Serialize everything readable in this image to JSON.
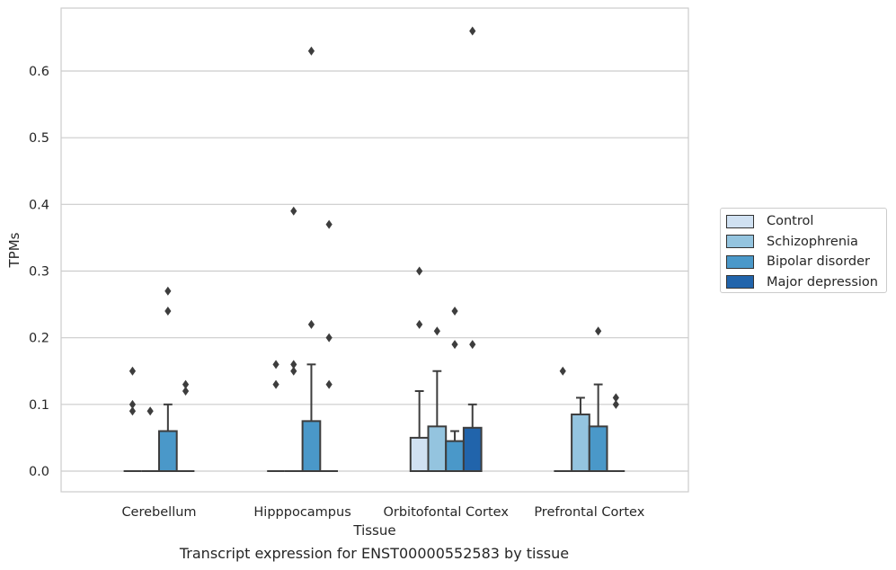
{
  "chart_data": {
    "type": "box",
    "ylabel": "TPMs",
    "xlabel": "Tissue",
    "ylim": [
      -0.032,
      0.69
    ],
    "yticks": [
      0.0,
      0.1,
      0.2,
      0.3,
      0.4,
      0.5,
      0.6
    ],
    "ytick_labels": [
      "0.0",
      "0.1",
      "0.2",
      "0.3",
      "0.4",
      "0.5",
      "0.6"
    ],
    "grid": true,
    "legend_position": "right",
    "categories": [
      "Cerebellum",
      "Hipppocampus",
      "Orbitofontal Cortex",
      "Prefrontal Cortex"
    ],
    "series": [
      {
        "name": "Control",
        "color": "#d0e1f2",
        "boxes": [
          {
            "q1": 0,
            "median": 0,
            "q3": 0,
            "whisker_low": 0,
            "whisker_high": 0,
            "outliers": [
              0.15,
              0.1,
              0.09
            ]
          },
          {
            "q1": 0,
            "median": 0,
            "q3": 0,
            "whisker_low": 0,
            "whisker_high": 0,
            "outliers": [
              0.16,
              0.13
            ]
          },
          {
            "q1": 0,
            "median": 0,
            "q3": 0.05,
            "whisker_low": 0,
            "whisker_high": 0.12,
            "outliers": [
              0.3,
              0.22
            ]
          },
          {
            "q1": 0,
            "median": 0,
            "q3": 0,
            "whisker_low": 0,
            "whisker_high": 0,
            "outliers": [
              0.15
            ]
          }
        ]
      },
      {
        "name": "Schizophrenia",
        "color": "#94c4df",
        "boxes": [
          {
            "q1": 0,
            "median": 0,
            "q3": 0,
            "whisker_low": 0,
            "whisker_high": 0,
            "outliers": [
              0.09
            ]
          },
          {
            "q1": 0,
            "median": 0,
            "q3": 0,
            "whisker_low": 0,
            "whisker_high": 0,
            "outliers": [
              0.39,
              0.16,
              0.15
            ]
          },
          {
            "q1": 0,
            "median": 0,
            "q3": 0.067,
            "whisker_low": 0,
            "whisker_high": 0.15,
            "outliers": [
              0.21
            ]
          },
          {
            "q1": 0,
            "median": 0,
            "q3": 0.085,
            "whisker_low": 0,
            "whisker_high": 0.11,
            "outliers": []
          }
        ]
      },
      {
        "name": "Bipolar disorder",
        "color": "#4a98c9",
        "boxes": [
          {
            "q1": 0,
            "median": 0,
            "q3": 0.06,
            "whisker_low": 0,
            "whisker_high": 0.1,
            "outliers": [
              0.27,
              0.24
            ]
          },
          {
            "q1": 0,
            "median": 0,
            "q3": 0.075,
            "whisker_low": 0,
            "whisker_high": 0.16,
            "outliers": [
              0.63,
              0.22
            ]
          },
          {
            "q1": 0,
            "median": 0,
            "q3": 0.045,
            "whisker_low": 0,
            "whisker_high": 0.06,
            "outliers": [
              0.24,
              0.19
            ]
          },
          {
            "q1": 0,
            "median": 0,
            "q3": 0.067,
            "whisker_low": 0,
            "whisker_high": 0.13,
            "outliers": [
              0.21
            ]
          }
        ]
      },
      {
        "name": "Major depression",
        "color": "#2164ab",
        "boxes": [
          {
            "q1": 0,
            "median": 0,
            "q3": 0,
            "whisker_low": 0,
            "whisker_high": 0,
            "outliers": [
              0.13,
              0.12
            ]
          },
          {
            "q1": 0,
            "median": 0,
            "q3": 0,
            "whisker_low": 0,
            "whisker_high": 0,
            "outliers": [
              0.37,
              0.2,
              0.13
            ]
          },
          {
            "q1": 0,
            "median": 0,
            "q3": 0.065,
            "whisker_low": 0,
            "whisker_high": 0.1,
            "outliers": [
              0.66,
              0.19
            ]
          },
          {
            "q1": 0,
            "median": 0,
            "q3": 0,
            "whisker_low": 0,
            "whisker_high": 0,
            "outliers": [
              0.11,
              0.1
            ]
          }
        ]
      }
    ]
  },
  "caption": "Transcript expression for ENST00000552583 by tissue"
}
